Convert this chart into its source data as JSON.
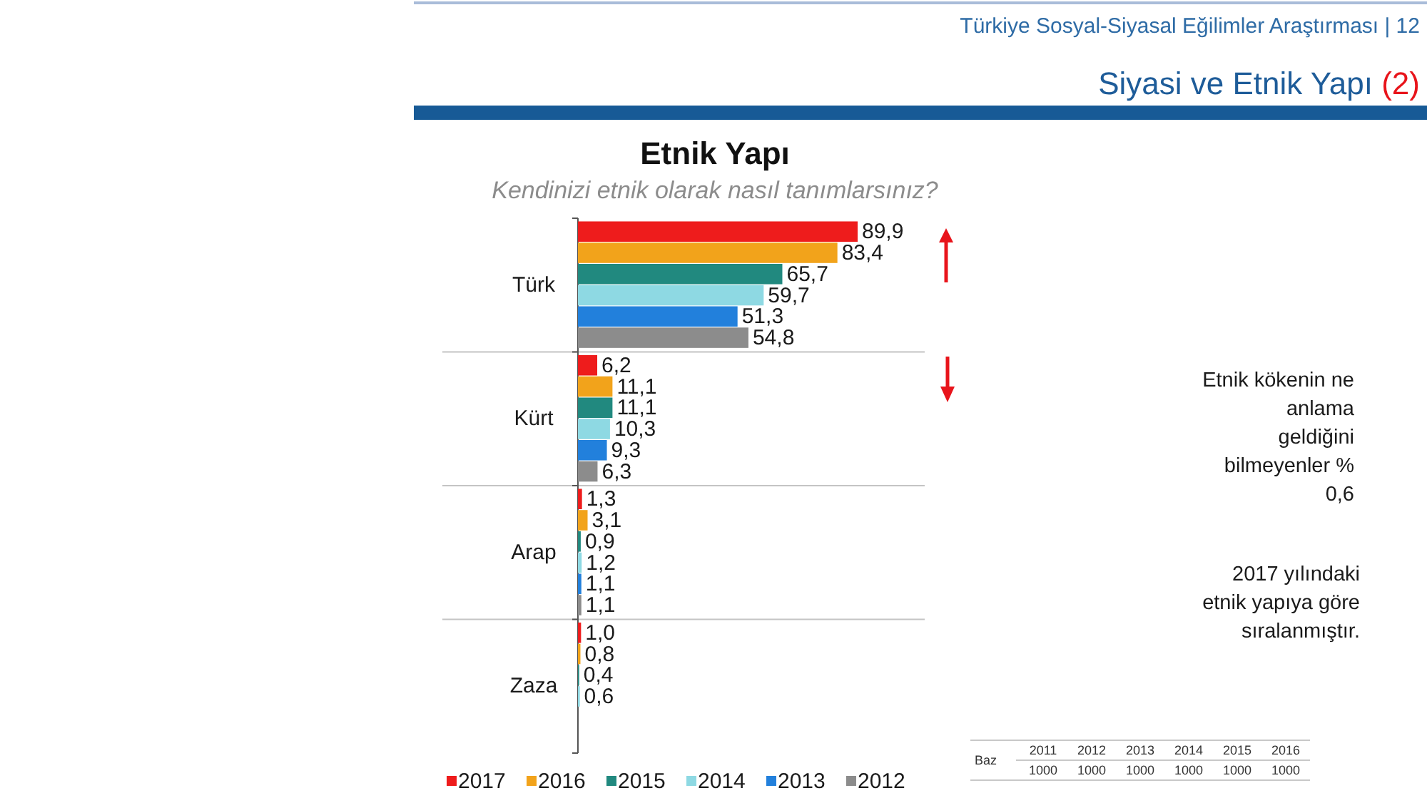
{
  "chart_data": {
    "type": "bar",
    "orientation": "horizontal",
    "title": "Etnik Yapı",
    "subtitle": "Kendinizi etnik olarak nasıl tanımlarsınız?",
    "categories": [
      "Türk",
      "Kürt",
      "Arap",
      "Zaza"
    ],
    "series": [
      {
        "name": "2017",
        "color": "#ee1c1c",
        "values": [
          89.9,
          6.2,
          1.3,
          1.0
        ],
        "value_labels": [
          "89,9",
          "6,2",
          "1,3",
          "1,0"
        ]
      },
      {
        "name": "2016",
        "color": "#f2a31b",
        "values": [
          83.4,
          11.1,
          3.1,
          0.8
        ],
        "value_labels": [
          "83,4",
          "11,1",
          "3,1",
          "0,8"
        ]
      },
      {
        "name": "2015",
        "color": "#21897f",
        "values": [
          65.7,
          11.1,
          0.9,
          0.4
        ],
        "value_labels": [
          "65,7",
          "11,1",
          "0,9",
          "0,4"
        ]
      },
      {
        "name": "2014",
        "color": "#8ed9e3",
        "values": [
          59.7,
          10.3,
          1.2,
          0.6
        ],
        "value_labels": [
          "59,7",
          "10,3",
          "1,2",
          "0,6"
        ]
      },
      {
        "name": "2013",
        "color": "#2280dc",
        "values": [
          51.3,
          9.3,
          1.1,
          null
        ],
        "value_labels": [
          "51,3",
          "9,3",
          "1,1",
          null
        ]
      },
      {
        "name": "2012",
        "color": "#8c8c8c",
        "values": [
          54.8,
          6.3,
          1.1,
          null
        ],
        "value_labels": [
          "54,8",
          "6,3",
          "1,1",
          null
        ]
      }
    ],
    "legend": "bottom",
    "grid": "y",
    "tick_labels": "y",
    "annotations": [
      "Türkiye Sosyal-Siyasal Eğilimler Araştırması | 12",
      "Siyasi ve Etnik Yapı (2)",
      "Etnik kökenin ne\nanlama\ngeldiğini\nbilmeyenler %\n0,6",
      "2017 yılındaki\netnik yapıya göre\nsıralanmıştır.",
      "Baz",
      "2011",
      "2012",
      "2013",
      "2014",
      "2015",
      "2016",
      "1000",
      "1000",
      "1000",
      "1000",
      "1000",
      "1000"
    ]
  }
}
